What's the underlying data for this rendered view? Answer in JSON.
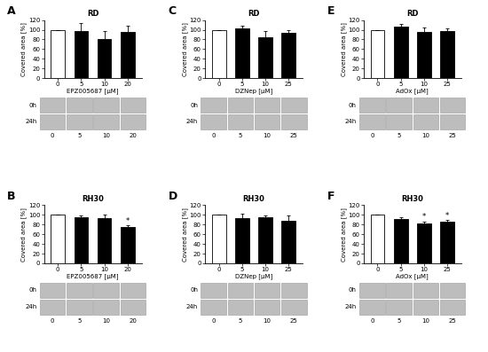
{
  "chart_data": [
    {
      "type": "bar",
      "panel": "A",
      "title": "RD",
      "x_label": "EPZ005687 [µM]",
      "y_label": "Covered area [%]",
      "categories": [
        "0",
        "5",
        "10",
        "20"
      ],
      "values": [
        100,
        98,
        80,
        96
      ],
      "errors": [
        0,
        15,
        17,
        13
      ],
      "significance": [
        null,
        null,
        null,
        null
      ],
      "colors": [
        "#ffffff",
        "#000000",
        "#000000",
        "#000000"
      ],
      "ylim": [
        0,
        120
      ],
      "yticks": [
        0,
        20,
        40,
        60,
        80,
        100,
        120
      ],
      "image_rows": [
        "0h",
        "24h"
      ]
    },
    {
      "type": "bar",
      "panel": "B",
      "title": "RH30",
      "x_label": "EPZ005687 [µM]",
      "y_label": "Covered area [%]",
      "categories": [
        "0",
        "5",
        "10",
        "20"
      ],
      "values": [
        100,
        96,
        94,
        75
      ],
      "errors": [
        0,
        2,
        6,
        3
      ],
      "significance": [
        null,
        null,
        null,
        "*"
      ],
      "colors": [
        "#ffffff",
        "#000000",
        "#000000",
        "#000000"
      ],
      "ylim": [
        0,
        120
      ],
      "yticks": [
        0,
        20,
        40,
        60,
        80,
        100,
        120
      ],
      "image_rows": [
        "0h",
        "24h"
      ]
    },
    {
      "type": "bar",
      "panel": "C",
      "title": "RD",
      "x_label": "DZNep [µM]",
      "y_label": "Covered area [%]",
      "categories": [
        "0",
        "5",
        "10",
        "25"
      ],
      "values": [
        100,
        102,
        85,
        93
      ],
      "errors": [
        0,
        7,
        13,
        6
      ],
      "significance": [
        null,
        null,
        null,
        null
      ],
      "colors": [
        "#ffffff",
        "#000000",
        "#000000",
        "#000000"
      ],
      "ylim": [
        0,
        120
      ],
      "yticks": [
        0,
        20,
        40,
        60,
        80,
        100,
        120
      ],
      "image_rows": [
        "0h",
        "24h"
      ]
    },
    {
      "type": "bar",
      "panel": "D",
      "title": "RH30",
      "x_label": "DZNep [µM]",
      "y_label": "Covered area [%]",
      "categories": [
        "0",
        "5",
        "10",
        "25"
      ],
      "values": [
        100,
        94,
        96,
        87
      ],
      "errors": [
        0,
        9,
        3,
        12
      ],
      "significance": [
        null,
        null,
        null,
        null
      ],
      "colors": [
        "#ffffff",
        "#000000",
        "#000000",
        "#000000"
      ],
      "ylim": [
        0,
        120
      ],
      "yticks": [
        0,
        20,
        40,
        60,
        80,
        100,
        120
      ],
      "image_rows": [
        "0h",
        "24h"
      ]
    },
    {
      "type": "bar",
      "panel": "E",
      "title": "RD",
      "x_label": "AdOx [µM]",
      "y_label": "Covered area [%]",
      "categories": [
        "0",
        "5",
        "10",
        "25"
      ],
      "values": [
        100,
        107,
        95,
        97
      ],
      "errors": [
        0,
        5,
        9,
        6
      ],
      "significance": [
        null,
        null,
        null,
        null
      ],
      "colors": [
        "#ffffff",
        "#000000",
        "#000000",
        "#000000"
      ],
      "ylim": [
        0,
        120
      ],
      "yticks": [
        0,
        20,
        40,
        60,
        80,
        100,
        120
      ],
      "image_rows": [
        "0h",
        "24h"
      ]
    },
    {
      "type": "bar",
      "panel": "F",
      "title": "RH30",
      "x_label": "AdOx [µM]",
      "y_label": "Covered area [%]",
      "categories": [
        "0",
        "5",
        "10",
        "25"
      ],
      "values": [
        100,
        91,
        83,
        86
      ],
      "errors": [
        0,
        4,
        3,
        3
      ],
      "significance": [
        null,
        null,
        "*",
        "*"
      ],
      "colors": [
        "#ffffff",
        "#000000",
        "#000000",
        "#000000"
      ],
      "ylim": [
        0,
        120
      ],
      "yticks": [
        0,
        20,
        40,
        60,
        80,
        100,
        120
      ],
      "image_rows": [
        "0h",
        "24h"
      ]
    }
  ]
}
